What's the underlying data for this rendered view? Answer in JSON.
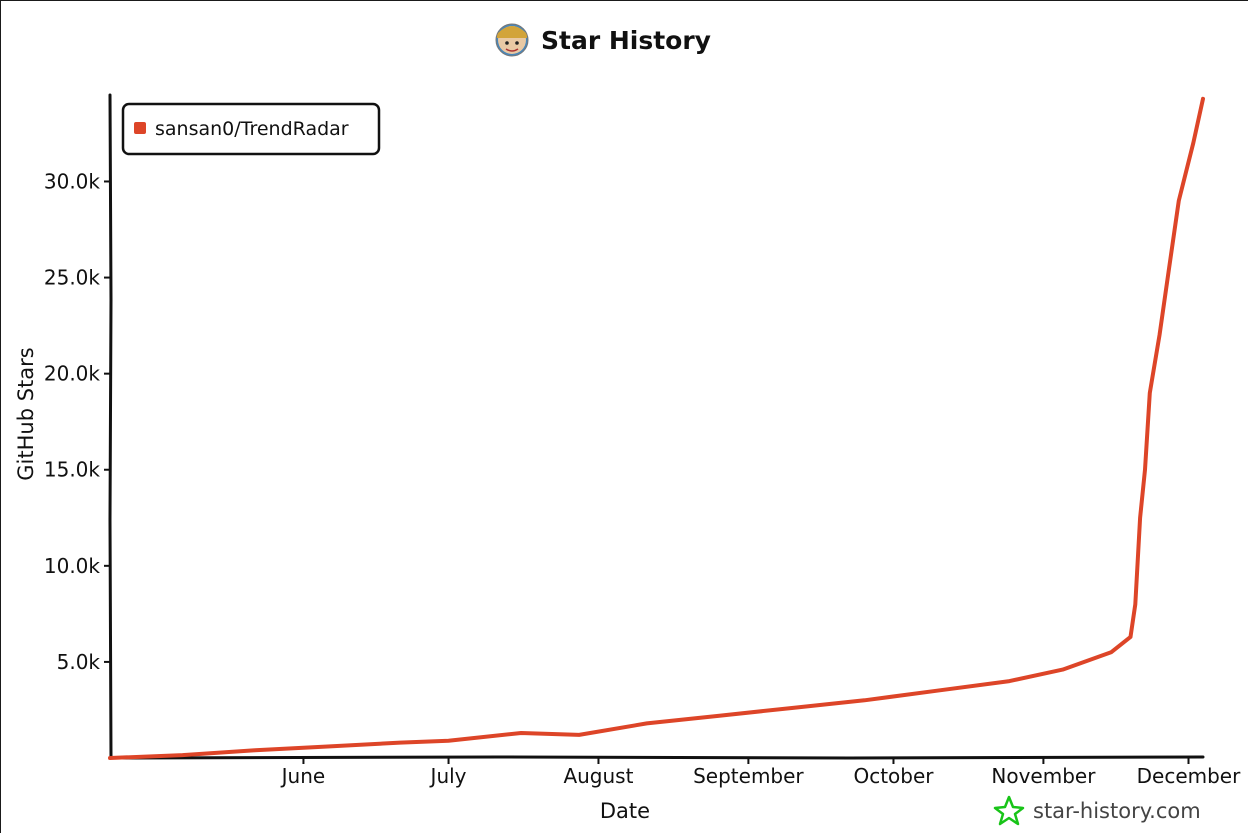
{
  "header": {
    "title": "Star History"
  },
  "watermark": {
    "text": "star-history.com"
  },
  "colors": {
    "series": "#dd4528",
    "axis": "#111111",
    "watermark_icon": "#18c418"
  },
  "chart_data": {
    "type": "line",
    "title": "Star History",
    "xlabel": "Date",
    "ylabel": "GitHub Stars",
    "ylim": [
      0,
      34500
    ],
    "yticks": [
      5000,
      10000,
      15000,
      20000,
      25000,
      30000
    ],
    "ytick_labels": [
      "5.0k",
      "10.0k",
      "15.0k",
      "20.0k",
      "25.0k",
      "30.0k"
    ],
    "xlim": [
      "2025-04-22",
      "2025-12-04"
    ],
    "xticks": [
      "2025-06-01",
      "2025-07-01",
      "2025-08-01",
      "2025-09-01",
      "2025-10-01",
      "2025-11-01",
      "2025-12-01"
    ],
    "xtick_labels": [
      "June",
      "July",
      "August",
      "September",
      "October",
      "November",
      "December"
    ],
    "legend_position": "top-left",
    "grid": false,
    "series": [
      {
        "name": "sansan0/TrendRadar",
        "color": "#dd4528",
        "x": [
          "2025-04-22",
          "2025-05-07",
          "2025-05-22",
          "2025-06-06",
          "2025-06-21",
          "2025-07-01",
          "2025-07-16",
          "2025-07-28",
          "2025-08-11",
          "2025-08-26",
          "2025-09-10",
          "2025-09-25",
          "2025-10-10",
          "2025-10-25",
          "2025-11-05",
          "2025-11-15",
          "2025-11-19",
          "2025-11-20",
          "2025-11-21",
          "2025-11-22",
          "2025-11-23",
          "2025-11-25",
          "2025-11-27",
          "2025-11-29",
          "2025-12-02",
          "2025-12-04"
        ],
        "values": [
          0,
          150,
          400,
          600,
          800,
          900,
          1300,
          1200,
          1800,
          2200,
          2600,
          3000,
          3500,
          4000,
          4600,
          5500,
          6300,
          8000,
          12500,
          15000,
          19000,
          22000,
          25500,
          29000,
          32000,
          34300
        ]
      }
    ]
  }
}
